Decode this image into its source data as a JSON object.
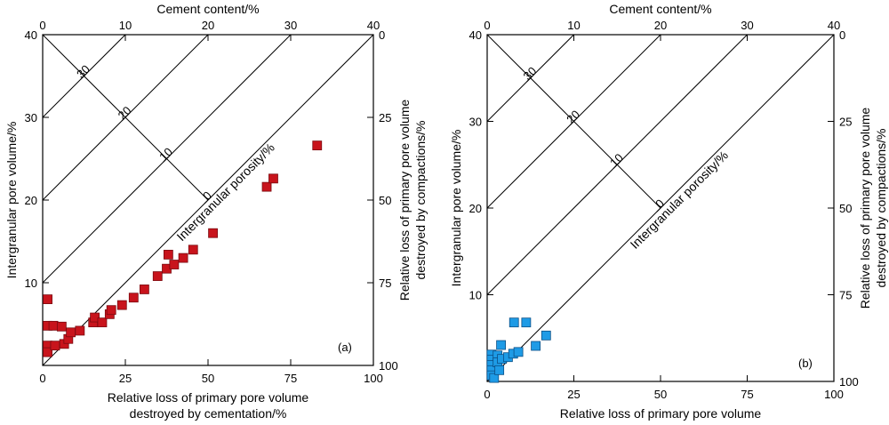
{
  "chart_data": [
    {
      "type": "scatter",
      "panel_label": "(a)",
      "marker_color": "#c8141c",
      "marker_edge": "#7a0a10",
      "xlabel": [
        "Relative loss of primary pore volume",
        "destroyed by cementation/%"
      ],
      "ylabel": "Intergranular pore volume/%",
      "x2label": "Cement content/%",
      "y2label": [
        "Relative loss of primary pore volume",
        "destroyed by compactions/%"
      ],
      "xlim": [
        0,
        100
      ],
      "ylim": [
        0,
        40
      ],
      "x_ticks": [
        "0",
        "25",
        "50",
        "75",
        "100"
      ],
      "y_ticks": [
        "10",
        "20",
        "30",
        "40"
      ],
      "x2_ticks": [
        "0",
        "10",
        "20",
        "30",
        "40"
      ],
      "y2_ticks": [
        "0",
        "25",
        "50",
        "75",
        "100"
      ],
      "contour_label": "Intergranular porosity/%",
      "contour_ticks": [
        "30",
        "20",
        "10",
        "0"
      ],
      "points": [
        {
          "cement": 0.6,
          "ipv": 8.0
        },
        {
          "cement": 0.6,
          "ipv": 4.8
        },
        {
          "cement": 1.3,
          "ipv": 4.8
        },
        {
          "cement": 2.3,
          "ipv": 4.7
        },
        {
          "cement": 0.6,
          "ipv": 2.4
        },
        {
          "cement": 0.6,
          "ipv": 1.6
        },
        {
          "cement": 1.5,
          "ipv": 2.4
        },
        {
          "cement": 2.6,
          "ipv": 2.6
        },
        {
          "cement": 3.1,
          "ipv": 3.2
        },
        {
          "cement": 3.4,
          "ipv": 4.0
        },
        {
          "cement": 4.5,
          "ipv": 4.2
        },
        {
          "cement": 6.1,
          "ipv": 5.2
        },
        {
          "cement": 6.3,
          "ipv": 5.8
        },
        {
          "cement": 7.2,
          "ipv": 5.2
        },
        {
          "cement": 8.1,
          "ipv": 6.2
        },
        {
          "cement": 8.3,
          "ipv": 6.7
        },
        {
          "cement": 9.6,
          "ipv": 7.3
        },
        {
          "cement": 11.0,
          "ipv": 8.2
        },
        {
          "cement": 12.3,
          "ipv": 9.2
        },
        {
          "cement": 13.9,
          "ipv": 10.8
        },
        {
          "cement": 15.0,
          "ipv": 11.7
        },
        {
          "cement": 15.9,
          "ipv": 12.2
        },
        {
          "cement": 15.2,
          "ipv": 13.4
        },
        {
          "cement": 17.0,
          "ipv": 13.0
        },
        {
          "cement": 18.2,
          "ipv": 14.0
        },
        {
          "cement": 20.6,
          "ipv": 16.0
        },
        {
          "cement": 27.1,
          "ipv": 21.6
        },
        {
          "cement": 27.9,
          "ipv": 22.6
        },
        {
          "cement": 33.2,
          "ipv": 26.6
        }
      ]
    },
    {
      "type": "scatter",
      "panel_label": "(b)",
      "marker_color": "#1e9be6",
      "marker_edge": "#0b4f86",
      "xlabel": [
        "Relative loss of primary pore volume",
        "destroyed by cementation/%"
      ],
      "ylabel": "Intergranular pore volume/%",
      "x2label": "Cement content/%",
      "y2label": [
        "Relative loss of primary pore volume",
        "destroyed by compactions/%"
      ],
      "xlim": [
        0,
        100
      ],
      "ylim": [
        0,
        40
      ],
      "x_ticks": [
        "0",
        "25",
        "50",
        "75",
        "100"
      ],
      "y_ticks": [
        "10",
        "20",
        "30",
        "40"
      ],
      "x2_ticks": [
        "0",
        "10",
        "20",
        "30",
        "40"
      ],
      "y2_ticks": [
        "0",
        "25",
        "50",
        "75",
        "100"
      ],
      "contour_label": "Intergranular porosity/%",
      "contour_ticks": [
        "30",
        "20",
        "10",
        "0"
      ],
      "points": [
        {
          "cement": 0.5,
          "ipv": 3.1
        },
        {
          "cement": 0.5,
          "ipv": 2.5
        },
        {
          "cement": 0.5,
          "ipv": 1.9
        },
        {
          "cement": 0.5,
          "ipv": 1.3
        },
        {
          "cement": 0.5,
          "ipv": 0.7
        },
        {
          "cement": 0.8,
          "ipv": 0.4
        },
        {
          "cement": 1.2,
          "ipv": 3.0
        },
        {
          "cement": 1.6,
          "ipv": 4.2
        },
        {
          "cement": 1.2,
          "ipv": 2.2
        },
        {
          "cement": 1.4,
          "ipv": 1.3
        },
        {
          "cement": 1.7,
          "ipv": 2.6
        },
        {
          "cement": 2.4,
          "ipv": 2.8
        },
        {
          "cement": 3.0,
          "ipv": 3.2
        },
        {
          "cement": 3.6,
          "ipv": 3.4
        },
        {
          "cement": 3.1,
          "ipv": 6.8
        },
        {
          "cement": 4.5,
          "ipv": 6.8
        },
        {
          "cement": 5.6,
          "ipv": 4.1
        },
        {
          "cement": 6.8,
          "ipv": 5.3
        }
      ]
    }
  ]
}
